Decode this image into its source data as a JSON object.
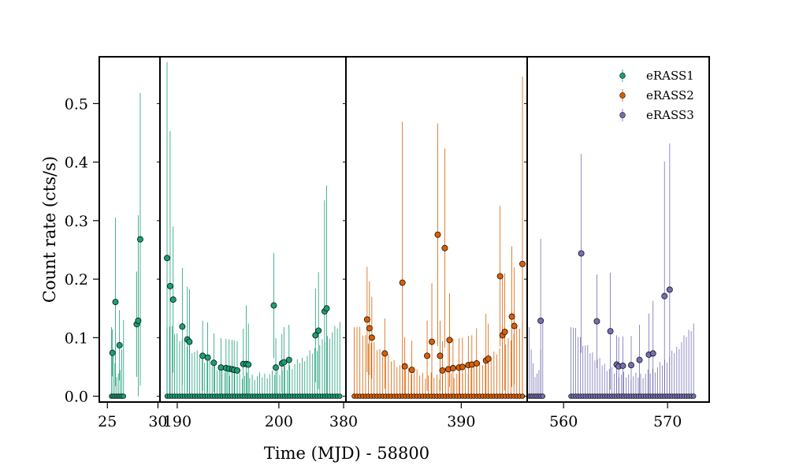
{
  "chart_data": {
    "type": "scatter",
    "xlabel": "Time (MJD) - 58800",
    "ylabel": "Count rate (cts/s)",
    "ylim": [
      -0.01,
      0.58
    ],
    "yticks": [
      0.0,
      0.1,
      0.2,
      0.3,
      0.4,
      0.5
    ],
    "legend_position": "top-right",
    "panels": [
      {
        "xlim": [
          24.2,
          30.2
        ],
        "xticks": [
          25,
          30
        ]
      },
      {
        "xlim": [
          188.3,
          206.6
        ],
        "xticks": [
          190,
          200
        ]
      },
      {
        "xlim": [
          380.2,
          395.6
        ],
        "xticks": [
          380,
          390
        ]
      },
      {
        "xlim": [
          556.5,
          574.0
        ],
        "xticks": [
          560,
          570
        ]
      }
    ],
    "series": [
      {
        "name": "eRASS1",
        "color": "#1b9e77",
        "points": [
          {
            "panel": 0,
            "x": 25.5,
            "y": 0.074,
            "err": 0.04
          },
          {
            "panel": 0,
            "x": 25.8,
            "y": 0.161,
            "err": 0.144
          },
          {
            "panel": 0,
            "x": 26.2,
            "y": 0.087,
            "err": 0.06
          },
          {
            "panel": 0,
            "x": 27.9,
            "y": 0.123,
            "err": 0.09
          },
          {
            "panel": 0,
            "x": 28.05,
            "y": 0.129,
            "err": 0.18
          },
          {
            "panel": 0,
            "x": 28.25,
            "y": 0.268,
            "err": 0.25
          },
          {
            "panel": 1,
            "x": 189.0,
            "y": 0.236,
            "err": 0.335
          },
          {
            "panel": 1,
            "x": 189.3,
            "y": 0.188,
            "err": 0.265
          },
          {
            "panel": 1,
            "x": 189.6,
            "y": 0.165,
            "err": 0.125
          },
          {
            "panel": 1,
            "x": 190.5,
            "y": 0.119,
            "err": 0.1
          },
          {
            "panel": 1,
            "x": 191.0,
            "y": 0.097,
            "err": 0.09
          },
          {
            "panel": 1,
            "x": 191.2,
            "y": 0.093,
            "err": 0.09
          },
          {
            "panel": 1,
            "x": 192.5,
            "y": 0.069,
            "err": 0.06
          },
          {
            "panel": 1,
            "x": 193.0,
            "y": 0.066,
            "err": 0.06
          },
          {
            "panel": 1,
            "x": 193.6,
            "y": 0.057,
            "err": 0.05
          },
          {
            "panel": 1,
            "x": 194.3,
            "y": 0.049,
            "err": 0.05
          },
          {
            "panel": 1,
            "x": 194.8,
            "y": 0.048,
            "err": 0.05
          },
          {
            "panel": 1,
            "x": 195.1,
            "y": 0.047,
            "err": 0.05
          },
          {
            "panel": 1,
            "x": 195.4,
            "y": 0.046,
            "err": 0.05
          },
          {
            "panel": 1,
            "x": 195.6,
            "y": 0.045,
            "err": 0.05
          },
          {
            "panel": 1,
            "x": 195.9,
            "y": 0.044,
            "err": 0.05
          },
          {
            "panel": 1,
            "x": 196.5,
            "y": 0.055,
            "err": 0.06
          },
          {
            "panel": 1,
            "x": 196.8,
            "y": 0.055,
            "err": 0.1
          },
          {
            "panel": 1,
            "x": 197.0,
            "y": 0.054,
            "err": 0.07
          },
          {
            "panel": 1,
            "x": 199.5,
            "y": 0.155,
            "err": 0.09
          },
          {
            "panel": 1,
            "x": 199.7,
            "y": 0.049,
            "err": 0.05
          },
          {
            "panel": 1,
            "x": 200.3,
            "y": 0.056,
            "err": 0.05
          },
          {
            "panel": 1,
            "x": 200.5,
            "y": 0.058,
            "err": 0.06
          },
          {
            "panel": 1,
            "x": 201.0,
            "y": 0.062,
            "err": 0.06
          },
          {
            "panel": 1,
            "x": 203.6,
            "y": 0.104,
            "err": 0.08
          },
          {
            "panel": 1,
            "x": 203.9,
            "y": 0.112,
            "err": 0.1
          },
          {
            "panel": 1,
            "x": 204.5,
            "y": 0.145,
            "err": 0.19
          },
          {
            "panel": 1,
            "x": 204.7,
            "y": 0.15,
            "err": 0.21
          }
        ],
        "baseline": [
          {
            "panel": 0,
            "from": 25.4,
            "to": 26.6,
            "n": 8
          },
          {
            "panel": 1,
            "from": 189.0,
            "to": 206.0,
            "n": 70
          }
        ]
      },
      {
        "name": "eRASS2",
        "color": "#d95f02",
        "points": [
          {
            "panel": 2,
            "x": 382.0,
            "y": 0.131,
            "err": 0.09
          },
          {
            "panel": 2,
            "x": 382.2,
            "y": 0.116,
            "err": 0.08
          },
          {
            "panel": 2,
            "x": 382.4,
            "y": 0.1,
            "err": 0.07
          },
          {
            "panel": 2,
            "x": 383.5,
            "y": 0.073,
            "err": 0.06
          },
          {
            "panel": 2,
            "x": 385.0,
            "y": 0.194,
            "err": 0.275
          },
          {
            "panel": 2,
            "x": 385.2,
            "y": 0.051,
            "err": 0.05
          },
          {
            "panel": 2,
            "x": 385.8,
            "y": 0.045,
            "err": 0.05
          },
          {
            "panel": 2,
            "x": 387.1,
            "y": 0.069,
            "err": 0.06
          },
          {
            "panel": 2,
            "x": 387.5,
            "y": 0.093,
            "err": 0.1
          },
          {
            "panel": 2,
            "x": 388.0,
            "y": 0.276,
            "err": 0.19
          },
          {
            "panel": 2,
            "x": 388.2,
            "y": 0.069,
            "err": 0.06
          },
          {
            "panel": 2,
            "x": 388.4,
            "y": 0.044,
            "err": 0.05
          },
          {
            "panel": 2,
            "x": 388.6,
            "y": 0.253,
            "err": 0.17
          },
          {
            "panel": 2,
            "x": 388.9,
            "y": 0.046,
            "err": 0.05
          },
          {
            "panel": 2,
            "x": 389.0,
            "y": 0.096,
            "err": 0.08
          },
          {
            "panel": 2,
            "x": 389.3,
            "y": 0.048,
            "err": 0.05
          },
          {
            "panel": 2,
            "x": 389.8,
            "y": 0.049,
            "err": 0.05
          },
          {
            "panel": 2,
            "x": 390.1,
            "y": 0.05,
            "err": 0.05
          },
          {
            "panel": 2,
            "x": 390.6,
            "y": 0.053,
            "err": 0.05
          },
          {
            "panel": 2,
            "x": 390.9,
            "y": 0.054,
            "err": 0.05
          },
          {
            "panel": 2,
            "x": 391.3,
            "y": 0.056,
            "err": 0.06
          },
          {
            "panel": 2,
            "x": 392.1,
            "y": 0.061,
            "err": 0.08
          },
          {
            "panel": 2,
            "x": 392.3,
            "y": 0.064,
            "err": 0.06
          },
          {
            "panel": 2,
            "x": 393.3,
            "y": 0.205,
            "err": 0.12
          },
          {
            "panel": 2,
            "x": 393.5,
            "y": 0.104,
            "err": 0.1
          },
          {
            "panel": 2,
            "x": 393.7,
            "y": 0.11,
            "err": 0.1
          },
          {
            "panel": 2,
            "x": 394.3,
            "y": 0.136,
            "err": 0.12
          },
          {
            "panel": 2,
            "x": 394.5,
            "y": 0.12,
            "err": 0.1
          },
          {
            "panel": 2,
            "x": 395.2,
            "y": 0.226,
            "err": 0.32
          }
        ],
        "baseline": [
          {
            "panel": 2,
            "from": 380.9,
            "to": 395.2,
            "n": 60
          }
        ]
      },
      {
        "name": "eRASS3",
        "color": "#7570b3",
        "points": [
          {
            "panel": 3,
            "x": 557.8,
            "y": 0.129,
            "err": 0.14
          },
          {
            "panel": 3,
            "x": 561.7,
            "y": 0.244,
            "err": 0.17
          },
          {
            "panel": 3,
            "x": 563.2,
            "y": 0.128,
            "err": 0.08
          },
          {
            "panel": 3,
            "x": 564.5,
            "y": 0.111,
            "err": 0.1
          },
          {
            "panel": 3,
            "x": 565.1,
            "y": 0.054,
            "err": 0.05
          },
          {
            "panel": 3,
            "x": 565.3,
            "y": 0.051,
            "err": 0.05
          },
          {
            "panel": 3,
            "x": 565.7,
            "y": 0.052,
            "err": 0.05
          },
          {
            "panel": 3,
            "x": 566.5,
            "y": 0.053,
            "err": 0.05
          },
          {
            "panel": 3,
            "x": 567.3,
            "y": 0.062,
            "err": 0.06
          },
          {
            "panel": 3,
            "x": 568.2,
            "y": 0.071,
            "err": 0.07
          },
          {
            "panel": 3,
            "x": 568.6,
            "y": 0.073,
            "err": 0.09
          },
          {
            "panel": 3,
            "x": 569.7,
            "y": 0.171,
            "err": 0.23
          },
          {
            "panel": 3,
            "x": 570.2,
            "y": 0.182,
            "err": 0.25
          }
        ],
        "baseline": [
          {
            "panel": 3,
            "from": 556.7,
            "to": 558.0,
            "n": 8
          },
          {
            "panel": 3,
            "from": 560.7,
            "to": 572.5,
            "n": 52
          }
        ]
      }
    ]
  }
}
